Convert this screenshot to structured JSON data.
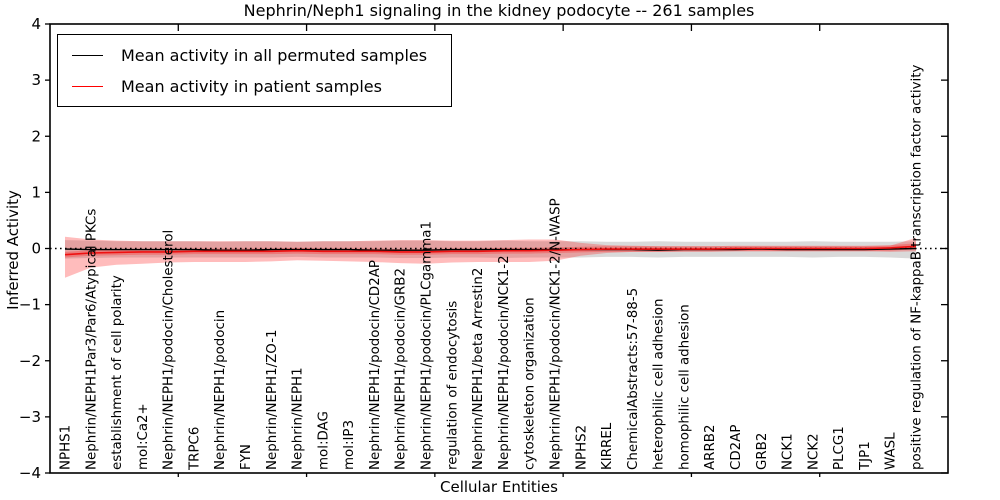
{
  "chart_data": {
    "type": "line",
    "title": "Nephrin/Neph1 signaling in the kidney podocyte -- 261 samples",
    "xlabel": "Cellular Entities",
    "ylabel": "Inferred Activity",
    "ylim": [
      -4,
      4
    ],
    "yticks": [
      4,
      3,
      2,
      1,
      0,
      -1,
      -2,
      -3,
      -4
    ],
    "xlim": [
      0,
      35
    ],
    "xticks": [
      5,
      10,
      15,
      20,
      25,
      30
    ],
    "grid": false,
    "legend_position": "upper left",
    "zero_line": {
      "y": 0,
      "style": "dotted",
      "color": "#000000"
    },
    "categories": [
      "NPHS1",
      "Nephrin/NEPH1Par3/Par6/Atypical PKCs",
      "establishment of cell polarity",
      "mol:Ca2+",
      "Nephrin/NEPH1/podocin/Cholesterol",
      "TRPC6",
      "Nephrin/NEPH1/podocin",
      "FYN",
      "Nephrin/NEPH1/ZO-1",
      "Nephrin/NEPH1",
      "mol:DAG",
      "mol:IP3",
      "Nephrin/NEPH1/podocin/CD2AP",
      "Nephrin/NEPH1/podocin/GRB2",
      "Nephrin/NEPH1/podocin/PLCgamma1",
      "regulation of endocytosis",
      "Nephrin/NEPH1/beta Arrestin2",
      "Nephrin/NEPH1/podocin/NCK1-2",
      "cytoskeleton organization",
      "Nephrin/NEPH1/podocin/NCK1-2/N-WASP",
      "NPHS2",
      "KIRREL",
      "ChemicalAbstracts:57-88-5",
      "heterophilic cell adhesion",
      "homophilic cell adhesion",
      "ARRB2",
      "CD2AP",
      "GRB2",
      "NCK1",
      "NCK2",
      "PLCG1",
      "TJP1",
      "WASL",
      "positive regulation of NF-kappaB transcription factor activity"
    ],
    "series": [
      {
        "name": "Mean activity in all permuted samples",
        "color": "#000000",
        "width": 1.4,
        "values": [
          -0.01,
          -0.02,
          -0.02,
          -0.02,
          -0.02,
          -0.02,
          -0.03,
          -0.03,
          -0.02,
          -0.02,
          -0.02,
          -0.02,
          -0.03,
          -0.03,
          -0.03,
          -0.02,
          -0.02,
          -0.02,
          -0.02,
          -0.02,
          -0.02,
          -0.02,
          -0.02,
          -0.03,
          -0.02,
          -0.02,
          -0.02,
          -0.01,
          -0.02,
          -0.02,
          -0.02,
          -0.02,
          -0.01,
          0.0
        ]
      },
      {
        "name": "Mean activity in patient samples",
        "color": "#ee1111",
        "width": 1.6,
        "values": [
          -0.11,
          -0.08,
          -0.07,
          -0.06,
          -0.06,
          -0.05,
          -0.05,
          -0.05,
          -0.05,
          -0.04,
          -0.05,
          -0.05,
          -0.05,
          -0.06,
          -0.06,
          -0.05,
          -0.05,
          -0.04,
          -0.04,
          -0.03,
          -0.02,
          -0.01,
          -0.01,
          -0.01,
          -0.01,
          -0.01,
          0.0,
          0.0,
          0.0,
          0.0,
          0.0,
          0.0,
          0.01,
          0.04
        ]
      }
    ],
    "bands": [
      {
        "name": "permuted-std-band",
        "color": "#777777",
        "opacity": 0.28,
        "upper": [
          0.15,
          0.14,
          0.13,
          0.13,
          0.13,
          0.13,
          0.12,
          0.13,
          0.13,
          0.12,
          0.13,
          0.13,
          0.13,
          0.14,
          0.14,
          0.13,
          0.13,
          0.14,
          0.13,
          0.13,
          0.13,
          0.12,
          0.12,
          0.13,
          0.12,
          0.12,
          0.12,
          0.12,
          0.12,
          0.13,
          0.12,
          0.12,
          0.12,
          0.13
        ],
        "lower": [
          -0.18,
          -0.17,
          -0.16,
          -0.16,
          -0.16,
          -0.16,
          -0.16,
          -0.16,
          -0.16,
          -0.15,
          -0.16,
          -0.16,
          -0.16,
          -0.17,
          -0.17,
          -0.16,
          -0.16,
          -0.17,
          -0.16,
          -0.16,
          -0.16,
          -0.15,
          -0.15,
          -0.16,
          -0.15,
          -0.15,
          -0.15,
          -0.15,
          -0.15,
          -0.16,
          -0.15,
          -0.15,
          -0.16,
          -0.18
        ]
      },
      {
        "name": "patient-std-band",
        "color": "#ff2222",
        "opacity": 0.3,
        "upper": [
          0.21,
          0.16,
          0.14,
          0.13,
          0.13,
          0.13,
          0.13,
          0.13,
          0.13,
          0.12,
          0.13,
          0.13,
          0.14,
          0.15,
          0.15,
          0.14,
          0.14,
          0.15,
          0.16,
          0.16,
          0.1,
          0.06,
          0.05,
          0.04,
          0.04,
          0.04,
          0.04,
          0.04,
          0.04,
          0.04,
          0.04,
          0.04,
          0.05,
          0.19
        ],
        "lower": [
          -0.52,
          -0.34,
          -0.29,
          -0.27,
          -0.25,
          -0.24,
          -0.24,
          -0.24,
          -0.23,
          -0.21,
          -0.22,
          -0.23,
          -0.24,
          -0.26,
          -0.27,
          -0.25,
          -0.24,
          -0.24,
          -0.24,
          -0.22,
          -0.13,
          -0.08,
          -0.06,
          -0.06,
          -0.05,
          -0.05,
          -0.05,
          -0.05,
          -0.05,
          -0.05,
          -0.05,
          -0.05,
          -0.06,
          -0.05
        ]
      },
      {
        "name": "patient-inner-band",
        "color": "#ff2222",
        "opacity": 0.3,
        "upper": [
          -0.06,
          -0.03,
          -0.02,
          -0.01,
          -0.01,
          0.0,
          0.0,
          0.0,
          0.0,
          0.01,
          0.0,
          0.0,
          0.0,
          -0.01,
          -0.01,
          0.0,
          0.0,
          0.01,
          0.01,
          0.02,
          0.03,
          0.04,
          0.04,
          0.04,
          0.04,
          0.04,
          0.05,
          0.05,
          0.05,
          0.05,
          0.05,
          0.05,
          0.06,
          0.09
        ],
        "lower": [
          -0.16,
          -0.13,
          -0.12,
          -0.11,
          -0.11,
          -0.1,
          -0.1,
          -0.1,
          -0.1,
          -0.09,
          -0.1,
          -0.1,
          -0.1,
          -0.11,
          -0.11,
          -0.1,
          -0.1,
          -0.09,
          -0.09,
          -0.08,
          -0.07,
          -0.06,
          -0.06,
          -0.06,
          -0.06,
          -0.06,
          -0.05,
          -0.05,
          -0.05,
          -0.05,
          -0.05,
          -0.05,
          -0.04,
          -0.01
        ]
      }
    ]
  }
}
